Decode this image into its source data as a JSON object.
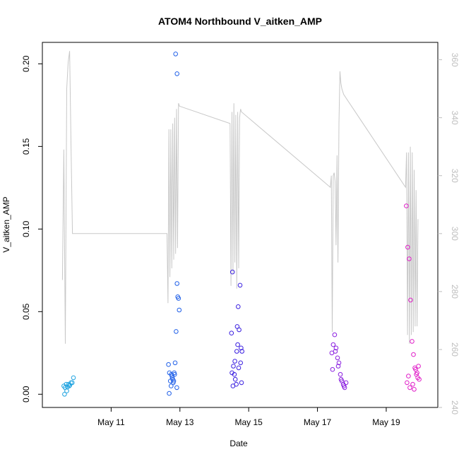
{
  "chart_data": {
    "type": "scatter",
    "title": "ATOM4 Northbound V_aitken_AMP",
    "xlabel": "Date",
    "ylabel": "V_aitken_AMP",
    "xlim": [
      "2023-05-09T00:00",
      "2023-05-20T12:00"
    ],
    "x_ticks": [
      {
        "date": "2023-05-11",
        "label": "May 11"
      },
      {
        "date": "2023-05-13",
        "label": "May 13"
      },
      {
        "date": "2023-05-15",
        "label": "May 15"
      },
      {
        "date": "2023-05-17",
        "label": "May 17"
      },
      {
        "date": "2023-05-19",
        "label": "May 19"
      }
    ],
    "ylim": [
      -0.008,
      0.213
    ],
    "y_ticks": [
      0.0,
      0.05,
      0.1,
      0.15,
      0.2
    ],
    "y_tick_labels": [
      "0.00",
      "0.05",
      "0.10",
      "0.15",
      "0.20"
    ],
    "y2lim": [
      240,
      366
    ],
    "y2_ticks": [
      240,
      260,
      280,
      300,
      320,
      340,
      360
    ],
    "y2_tick_labels": [
      "240",
      "260",
      "280",
      "300",
      "320",
      "340",
      "360"
    ],
    "y2_color": "#bdbdbd",
    "series": [
      {
        "color": "#1fa3e0",
        "marker": "open-circle",
        "x": [
          "2023-05-09T15:00",
          "2023-05-09T15:50",
          "2023-05-09T16:40",
          "2023-05-09T17:30",
          "2023-05-09T18:20",
          "2023-05-09T19:10",
          "2023-05-09T20:00",
          "2023-05-09T20:50",
          "2023-05-09T21:40",
          "2023-05-09T15:30",
          "2023-05-09T17:00",
          "2023-05-09T18:45"
        ],
        "y": [
          0.005,
          0.004,
          0.006,
          0.0045,
          0.006,
          0.0055,
          0.007,
          0.007,
          0.01,
          0.0,
          0.002,
          0.005
        ]
      },
      {
        "color": "#1f5fe8",
        "marker": "open-circle",
        "x": [
          "2023-05-12T16:00",
          "2023-05-12T16:40",
          "2023-05-12T17:20",
          "2023-05-12T18:00",
          "2023-05-12T18:40",
          "2023-05-12T19:20",
          "2023-05-12T20:00",
          "2023-05-12T20:40",
          "2023-05-12T21:20",
          "2023-05-12T22:00",
          "2023-05-12T22:30",
          "2023-05-12T23:00",
          "2023-05-12T23:30",
          "2023-05-12T16:30",
          "2023-05-12T17:50",
          "2023-05-12T19:00",
          "2023-05-12T20:20",
          "2023-05-12T21:50",
          "2023-05-12T18:30",
          "2023-05-12T19:40"
        ],
        "y": [
          0.018,
          0.013,
          0.008,
          0.012,
          0.01,
          0.007,
          0.013,
          0.019,
          0.038,
          0.067,
          0.059,
          0.058,
          0.051,
          0.0005,
          0.005,
          0.009,
          0.012,
          0.004,
          0.011,
          0.008
        ],
        "outliers": {
          "x": [
            "2023-05-12T21:00",
            "2023-05-12T22:00"
          ],
          "y": [
            0.206,
            0.194
          ]
        }
      },
      {
        "color": "#3a1fe0",
        "marker": "open-circle",
        "x": [
          "2023-05-14T12:00",
          "2023-05-14T12:40",
          "2023-05-14T13:20",
          "2023-05-14T14:00",
          "2023-05-14T14:40",
          "2023-05-14T15:20",
          "2023-05-14T16:00",
          "2023-05-14T16:40",
          "2023-05-14T17:20",
          "2023-05-14T18:00",
          "2023-05-14T18:40",
          "2023-05-14T19:20",
          "2023-05-14T13:00",
          "2023-05-14T14:20",
          "2023-05-14T15:40",
          "2023-05-14T17:00",
          "2023-05-14T18:20",
          "2023-05-14T12:20",
          "2023-05-14T16:20",
          "2023-05-14T19:00"
        ],
        "y": [
          0.037,
          0.074,
          0.017,
          0.012,
          0.009,
          0.006,
          0.041,
          0.053,
          0.039,
          0.066,
          0.028,
          0.026,
          0.005,
          0.02,
          0.026,
          0.016,
          0.019,
          0.013,
          0.03,
          0.007
        ]
      },
      {
        "color": "#8a1fe0",
        "marker": "open-circle",
        "x": [
          "2023-05-17T10:00",
          "2023-05-17T11:00",
          "2023-05-17T12:00",
          "2023-05-17T13:00",
          "2023-05-17T14:00",
          "2023-05-17T15:00",
          "2023-05-17T16:00",
          "2023-05-17T17:00",
          "2023-05-17T18:00",
          "2023-05-17T19:00",
          "2023-05-17T20:00",
          "2023-05-17T10:30",
          "2023-05-17T12:30",
          "2023-05-17T14:30",
          "2023-05-17T16:30",
          "2023-05-17T18:30"
        ],
        "y": [
          0.025,
          0.03,
          0.036,
          0.028,
          0.022,
          0.019,
          0.012,
          0.008,
          0.006,
          0.004,
          0.007,
          0.015,
          0.026,
          0.017,
          0.009,
          0.005
        ]
      },
      {
        "color": "#e01fc8",
        "marker": "open-circle",
        "x": [
          "2023-05-19T14:00",
          "2023-05-19T15:00",
          "2023-05-19T16:00",
          "2023-05-19T17:00",
          "2023-05-19T18:00",
          "2023-05-19T19:00",
          "2023-05-19T20:00",
          "2023-05-19T21:00",
          "2023-05-19T22:00",
          "2023-05-19T23:00",
          "2023-05-19T14:30",
          "2023-05-19T16:30",
          "2023-05-19T18:30",
          "2023-05-19T20:30",
          "2023-05-19T22:30",
          "2023-05-19T15:30",
          "2023-05-19T19:30",
          "2023-05-19T21:30"
        ],
        "y": [
          0.114,
          0.089,
          0.082,
          0.057,
          0.032,
          0.024,
          0.016,
          0.012,
          0.01,
          0.009,
          0.007,
          0.004,
          0.006,
          0.015,
          0.017,
          0.011,
          0.003,
          0.013
        ]
      }
    ],
    "secondary_line": {
      "color": "#c8c8c8",
      "x": [
        "2023-05-09T14:00",
        "2023-05-09T15:00",
        "2023-05-09T16:00",
        "2023-05-09T17:00",
        "2023-05-09T18:00",
        "2023-05-09T19:00",
        "2023-05-09T20:00",
        "2023-05-09T21:00",
        "2023-05-12T15:00",
        "2023-05-12T15:40",
        "2023-05-12T16:20",
        "2023-05-12T17:00",
        "2023-05-12T17:40",
        "2023-05-12T18:20",
        "2023-05-12T19:00",
        "2023-05-12T19:40",
        "2023-05-12T20:20",
        "2023-05-12T21:00",
        "2023-05-12T21:40",
        "2023-05-12T22:20",
        "2023-05-12T23:00",
        "2023-05-12T23:40",
        "2023-05-14T11:00",
        "2023-05-14T11:40",
        "2023-05-14T12:20",
        "2023-05-14T13:00",
        "2023-05-14T13:40",
        "2023-05-14T14:20",
        "2023-05-14T15:00",
        "2023-05-14T15:40",
        "2023-05-14T16:20",
        "2023-05-14T17:00",
        "2023-05-14T17:40",
        "2023-05-14T18:20",
        "2023-05-14T19:00",
        "2023-05-17T09:00",
        "2023-05-17T09:40",
        "2023-05-17T10:20",
        "2023-05-17T11:00",
        "2023-05-17T11:40",
        "2023-05-17T12:20",
        "2023-05-17T13:00",
        "2023-05-17T13:40",
        "2023-05-17T14:20",
        "2023-05-17T15:00",
        "2023-05-17T15:40",
        "2023-05-17T16:20",
        "2023-05-17T17:00",
        "2023-05-17T17:40",
        "2023-05-17T18:20",
        "2023-05-19T13:30",
        "2023-05-19T14:10",
        "2023-05-19T14:50",
        "2023-05-19T15:30",
        "2023-05-19T16:10",
        "2023-05-19T16:50",
        "2023-05-19T17:30",
        "2023-05-19T18:10",
        "2023-05-19T18:50",
        "2023-05-19T19:30",
        "2023-05-19T20:10",
        "2023-05-19T20:50",
        "2023-05-19T21:30",
        "2023-05-19T22:10"
      ],
      "y": [
        284,
        329,
        262,
        350,
        359,
        363,
        330,
        300,
        300,
        276,
        336,
        285,
        336,
        288,
        338,
        291,
        340,
        293,
        343,
        295,
        345,
        344,
        338,
        282,
        342,
        286,
        345,
        290,
        341,
        281,
        342,
        288,
        340,
        343,
        342,
        316,
        320,
        266,
        320,
        321,
        318,
        296,
        327,
        290,
        338,
        356,
        352,
        350,
        349,
        348,
        316,
        328,
        265,
        328,
        262,
        330,
        265,
        328,
        266,
        322,
        268,
        315,
        268,
        305
      ]
    }
  }
}
